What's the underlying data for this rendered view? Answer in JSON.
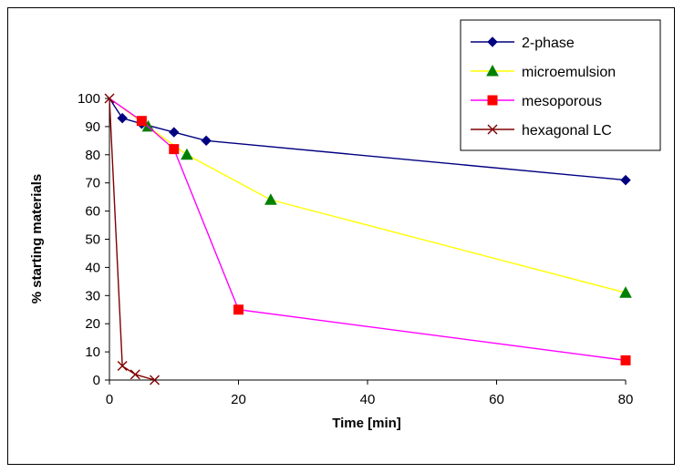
{
  "chart_data": {
    "type": "line",
    "xlabel": "Time [min]",
    "ylabel": "% starting materials",
    "xlim": [
      0,
      80
    ],
    "ylim": [
      0,
      100
    ],
    "x_ticks": [
      0,
      20,
      40,
      60,
      80
    ],
    "y_ticks": [
      0,
      10,
      20,
      30,
      40,
      50,
      60,
      70,
      80,
      90,
      100
    ],
    "grid": false,
    "legend_position": "top-right",
    "series": [
      {
        "name": "2-phase",
        "color": "#000080",
        "marker": "diamond",
        "x": [
          0,
          2,
          5,
          10,
          15,
          80
        ],
        "y": [
          100,
          93,
          91,
          88,
          85,
          71
        ]
      },
      {
        "name": "microemulsion",
        "color": "#FFFF00",
        "marker_color": "#008000",
        "marker": "triangle",
        "x": [
          0,
          6,
          12,
          25,
          80
        ],
        "y": [
          100,
          90,
          80,
          64,
          31
        ]
      },
      {
        "name": "mesoporous",
        "color": "#FF00FF",
        "marker_color": "#FF0000",
        "marker": "square",
        "x": [
          0,
          5,
          10,
          20,
          80
        ],
        "y": [
          100,
          92,
          82,
          25,
          7
        ]
      },
      {
        "name": "hexagonal LC",
        "color": "#800000",
        "marker": "x",
        "x": [
          0,
          2,
          4,
          7
        ],
        "y": [
          100,
          5,
          2,
          0
        ]
      }
    ]
  }
}
